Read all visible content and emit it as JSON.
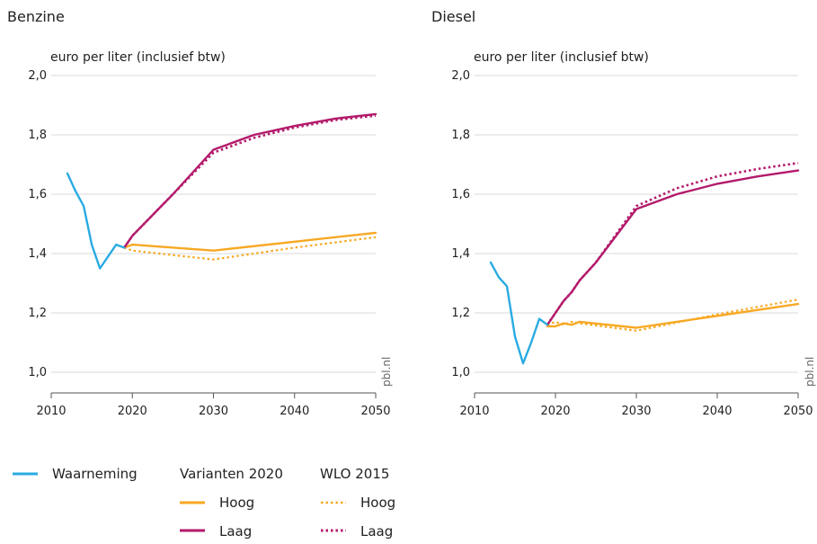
{
  "chart_data": [
    {
      "type": "line",
      "title": "Benzine",
      "ylabel": "euro per liter (inclusief btw)",
      "xlim": [
        2010,
        2050
      ],
      "ylim": [
        1.0,
        2.0
      ],
      "xticks": [
        "2010",
        "2020",
        "2030",
        "2040",
        "2050"
      ],
      "yticks": [
        "1,0",
        "1,2",
        "1,4",
        "1,6",
        "1,8",
        "2,0"
      ],
      "source": "pbl.nl",
      "series": [
        {
          "key": "waarneming",
          "x": [
            2012,
            2013,
            2014,
            2015,
            2016,
            2017,
            2018,
            2019
          ],
          "y": [
            1.67,
            1.61,
            1.56,
            1.43,
            1.35,
            1.39,
            1.43,
            1.42
          ]
        },
        {
          "key": "var_hoog",
          "x": [
            2019,
            2020,
            2030,
            2040,
            2050
          ],
          "y": [
            1.42,
            1.43,
            1.41,
            1.44,
            1.47
          ]
        },
        {
          "key": "var_laag",
          "x": [
            2019,
            2020,
            2025,
            2030,
            2035,
            2040,
            2045,
            2050
          ],
          "y": [
            1.42,
            1.46,
            1.6,
            1.75,
            1.8,
            1.83,
            1.855,
            1.87
          ]
        },
        {
          "key": "wlo_hoog",
          "x": [
            2019,
            2020,
            2030,
            2040,
            2050
          ],
          "y": [
            1.42,
            1.41,
            1.38,
            1.42,
            1.455
          ]
        },
        {
          "key": "wlo_laag",
          "x": [
            2019,
            2020,
            2025,
            2030,
            2035,
            2040,
            2045,
            2050
          ],
          "y": [
            1.42,
            1.46,
            1.6,
            1.74,
            1.79,
            1.825,
            1.85,
            1.865
          ]
        }
      ]
    },
    {
      "type": "line",
      "title": "Diesel",
      "ylabel": "euro per liter (inclusief btw)",
      "xlim": [
        2010,
        2050
      ],
      "ylim": [
        1.0,
        2.0
      ],
      "xticks": [
        "2010",
        "2020",
        "2030",
        "2040",
        "2050"
      ],
      "yticks": [
        "1,0",
        "1,2",
        "1,4",
        "1,6",
        "1,8",
        "2,0"
      ],
      "source": "pbl.nl",
      "series": [
        {
          "key": "waarneming",
          "x": [
            2012,
            2013,
            2014,
            2015,
            2016,
            2017,
            2018,
            2019
          ],
          "y": [
            1.37,
            1.32,
            1.29,
            1.12,
            1.03,
            1.1,
            1.18,
            1.16
          ]
        },
        {
          "key": "var_hoog",
          "x": [
            2019,
            2020,
            2021,
            2022,
            2023,
            2030,
            2040,
            2050
          ],
          "y": [
            1.155,
            1.155,
            1.165,
            1.16,
            1.17,
            1.15,
            1.19,
            1.23
          ]
        },
        {
          "key": "var_laag",
          "x": [
            2019,
            2020,
            2021,
            2022,
            2023,
            2025,
            2030,
            2035,
            2040,
            2045,
            2050
          ],
          "y": [
            1.16,
            1.2,
            1.24,
            1.27,
            1.31,
            1.37,
            1.55,
            1.6,
            1.635,
            1.66,
            1.68
          ]
        },
        {
          "key": "wlo_hoog",
          "x": [
            2019,
            2020,
            2021,
            2022,
            2023,
            2030,
            2040,
            2050
          ],
          "y": [
            1.16,
            1.17,
            1.16,
            1.17,
            1.165,
            1.14,
            1.195,
            1.245
          ]
        },
        {
          "key": "wlo_laag",
          "x": [
            2019,
            2020,
            2021,
            2022,
            2023,
            2025,
            2030,
            2035,
            2040,
            2045,
            2050
          ],
          "y": [
            1.16,
            1.2,
            1.24,
            1.27,
            1.31,
            1.37,
            1.56,
            1.62,
            1.66,
            1.685,
            1.705
          ]
        }
      ]
    }
  ],
  "legend": {
    "observed": "Waarneming",
    "group1": "Varianten 2020",
    "group2": "WLO 2015",
    "hoog": "Hoog",
    "laag": "Laag"
  },
  "colors": {
    "waarneming": "#29abe2",
    "hoog": "#f7a823",
    "laag": "#b31a6b",
    "grid": "#d9d9d9",
    "axis": "#555555"
  }
}
